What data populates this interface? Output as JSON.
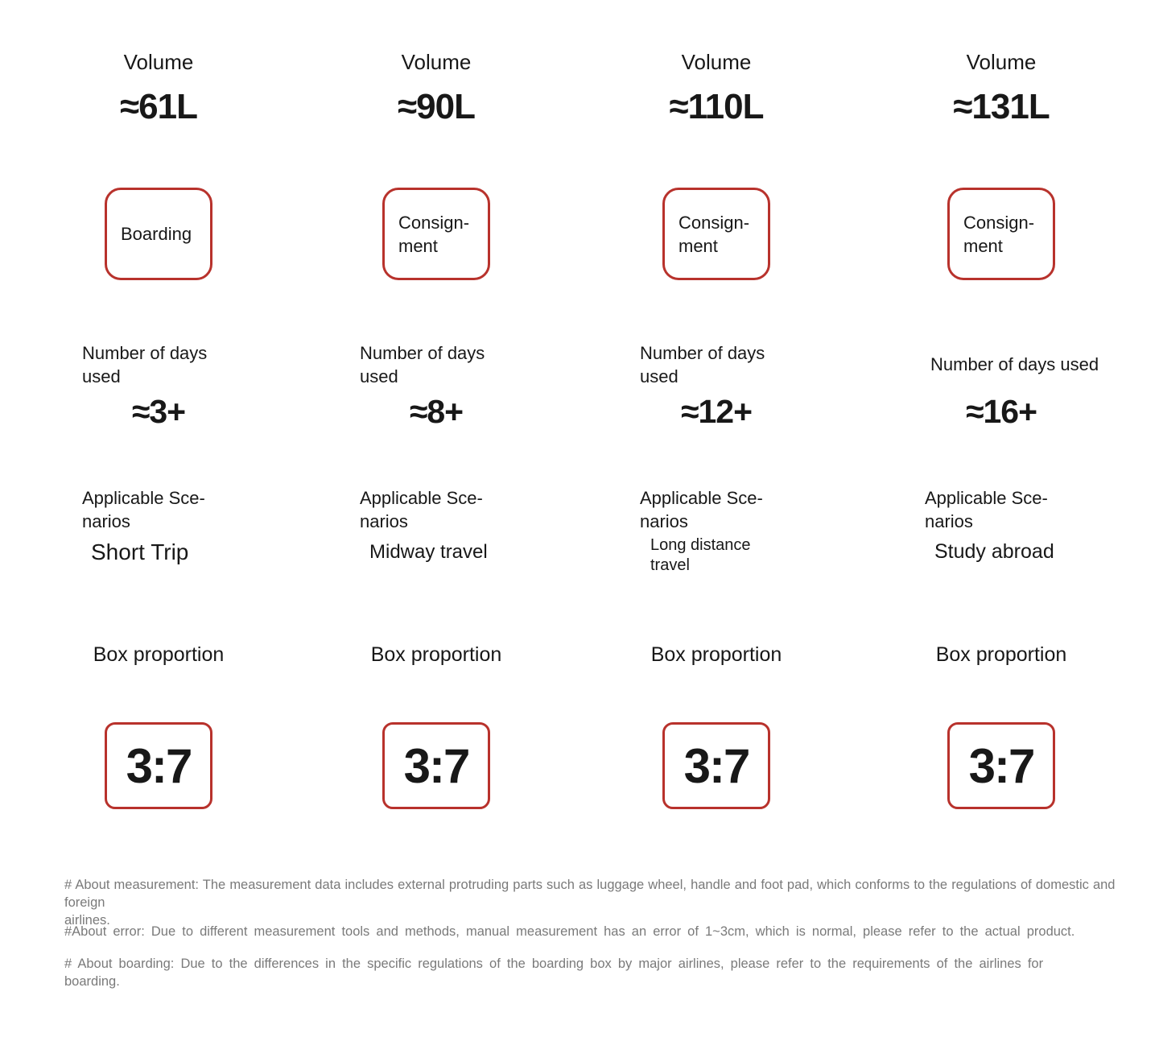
{
  "page": {
    "background": "#ffffff",
    "accent_red": "#b8322c"
  },
  "columns": [
    {
      "volume_label": "Volume",
      "volume_value": "≈61L",
      "badge_label": "Boarding",
      "days_label": "Number of days\nused",
      "days_value": "≈3+",
      "scenarios_label": "Applicable Sce-\nnarios",
      "scenario_value": "Short Trip",
      "box_label": "Box proportion",
      "ratio_value": "3:7"
    },
    {
      "volume_label": "Volume",
      "volume_value": "≈90L",
      "badge_label": "Consign-\nment",
      "days_label": "Number of days\nused",
      "days_value": "≈8+",
      "scenarios_label": "Applicable Sce-\nnarios",
      "scenario_value": "Midway travel",
      "box_label": "Box proportion",
      "ratio_value": "3:7"
    },
    {
      "volume_label": "Volume",
      "volume_value": "≈110L",
      "badge_label": "Consign-\nment",
      "days_label": "Number of days\nused",
      "days_value": "≈12+",
      "scenarios_label": "Applicable Sce-\nnarios",
      "scenario_value": "Long distance\ntravel",
      "box_label": "Box proportion",
      "ratio_value": "3:7"
    },
    {
      "volume_label": "Volume",
      "volume_value": "≈131L",
      "badge_label": "Consign-\nment",
      "days_label": "Number of days used",
      "days_value": "≈16+",
      "scenarios_label": "Applicable Sce-\nnarios",
      "scenario_value": "Study abroad",
      "box_label": "Box proportion",
      "ratio_value": "3:7"
    }
  ],
  "footnotes": [
    "# About measurement: The measurement data includes external protruding parts such as luggage wheel, handle and foot pad, which conforms to the regulations of domestic and foreign\nairlines.",
    "#About error: Due to different measurement tools and methods, manual measurement has an error of 1~3cm, which is normal, please refer to the actual product.",
    "# About boarding: Due to the differences in the specific regulations of the boarding box by major airlines, please refer to the requirements of the airlines for\nboarding."
  ]
}
